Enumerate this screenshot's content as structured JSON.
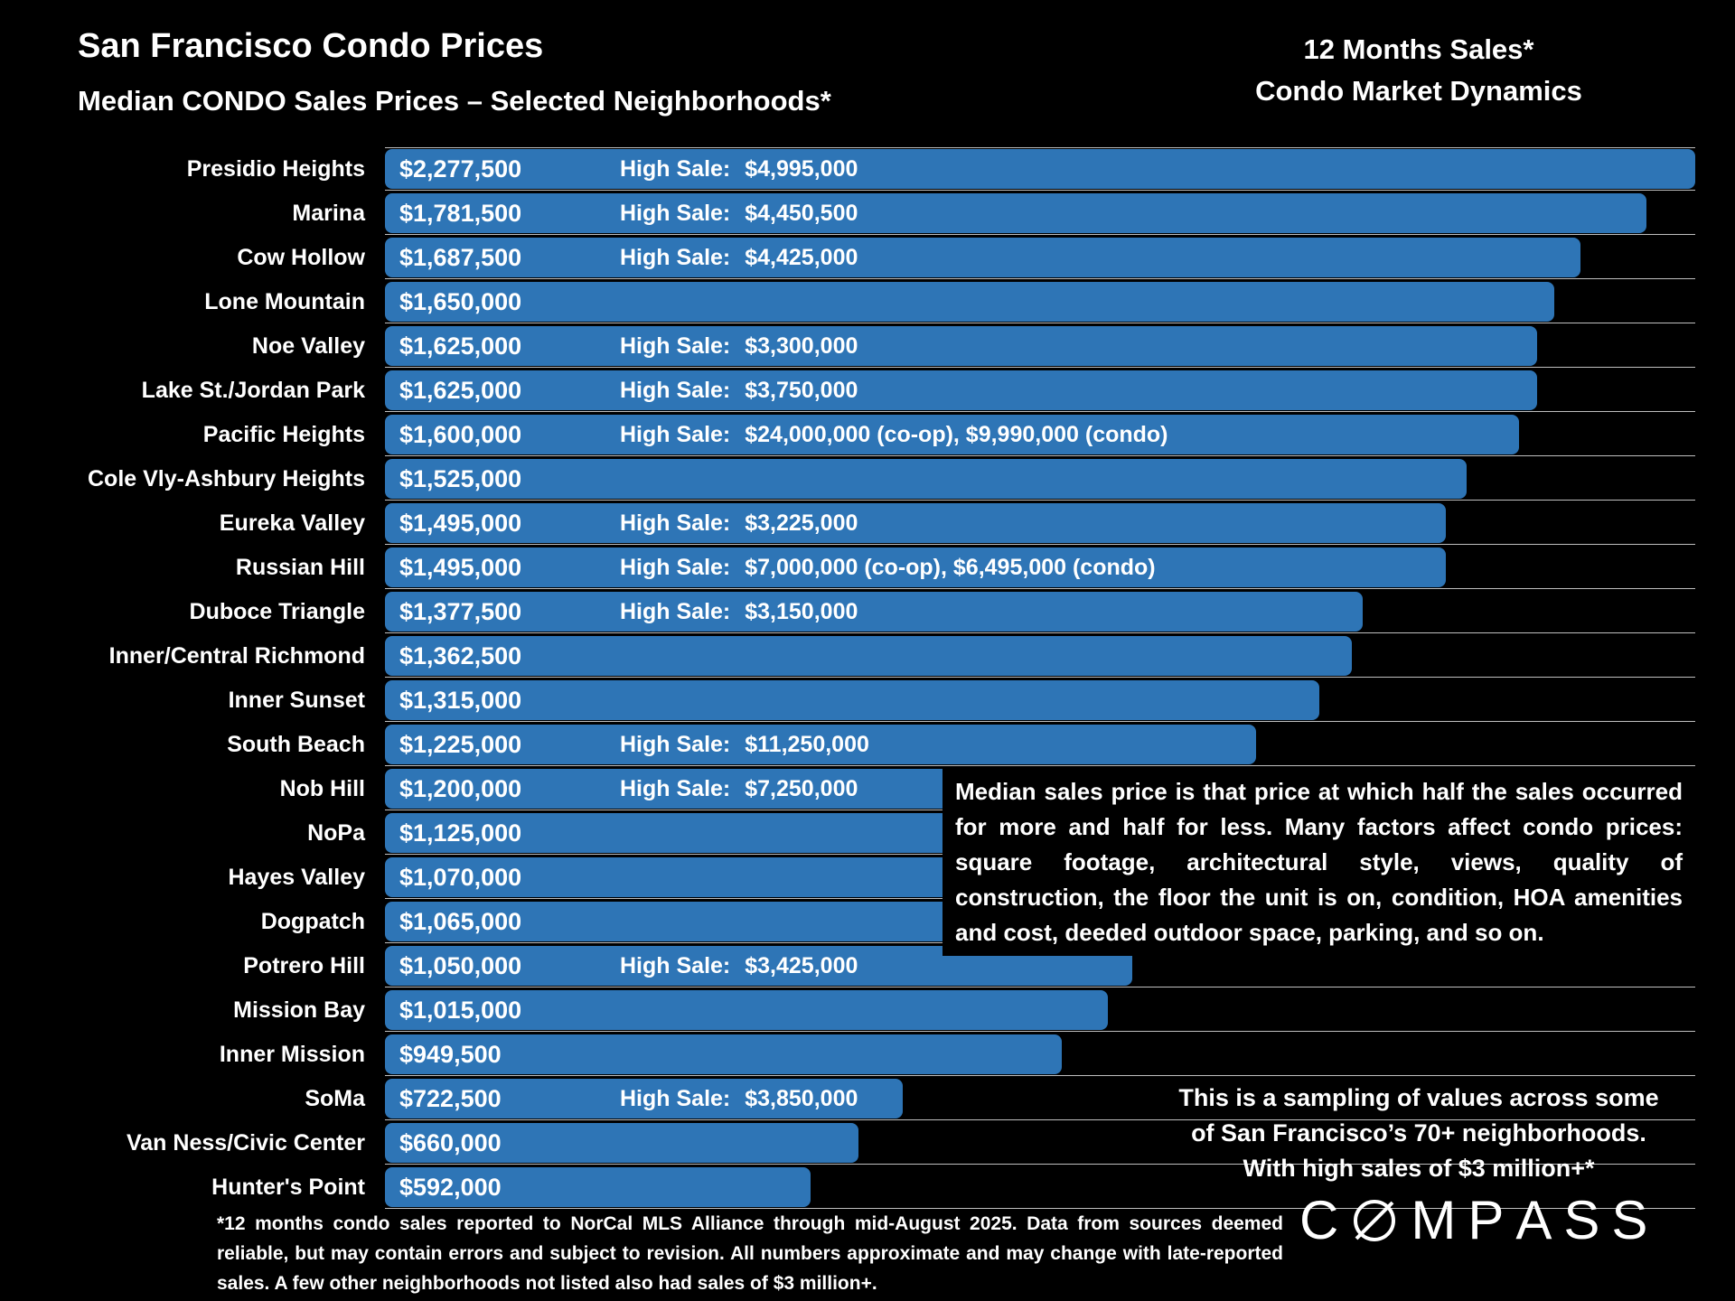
{
  "colors": {
    "background": "#000000",
    "bar": "#2E75B6",
    "text": "#FFFFFF"
  },
  "header": {
    "title": "San Francisco Condo Prices",
    "subtitle": "Median CONDO Sales Prices – Selected Neighborhoods*",
    "right_line1": "12 Months Sales*",
    "right_line2": "Condo Market Dynamics"
  },
  "chart_data": {
    "type": "bar",
    "orientation": "horizontal",
    "title": "San Francisco Condo Prices",
    "subtitle": "Median CONDO Sales Prices – Selected Neighborhoods*",
    "value_unit": "USD",
    "bar_color": "#2E75B6",
    "grid": true,
    "xlim": [
      0,
      2277500
    ],
    "categories": [
      "Presidio Heights",
      "Marina",
      "Cow Hollow",
      "Lone Mountain",
      "Noe Valley",
      "Lake St./Jordan Park",
      "Pacific Heights",
      "Cole Vly-Ashbury Heights",
      "Eureka Valley",
      "Russian Hill",
      "Duboce Triangle",
      "Inner/Central Richmond",
      "Inner Sunset",
      "South Beach",
      "Nob Hill",
      "NoPa",
      "Hayes Valley",
      "Dogpatch",
      "Potrero Hill",
      "Mission Bay",
      "Inner Mission",
      "SoMa",
      "Van Ness/Civic Center",
      "Hunter's Point"
    ],
    "values": [
      2277500,
      1781500,
      1687500,
      1650000,
      1625000,
      1625000,
      1600000,
      1525000,
      1495000,
      1495000,
      1377500,
      1362500,
      1315000,
      1225000,
      1200000,
      1125000,
      1070000,
      1065000,
      1050000,
      1015000,
      949500,
      722500,
      660000,
      592000
    ],
    "value_labels": [
      "$2,277,500",
      "$1,781,500",
      "$1,687,500",
      "$1,650,000",
      "$1,625,000",
      "$1,625,000",
      "$1,600,000",
      "$1,525,000",
      "$1,495,000",
      "$1,495,000",
      "$1,377,500",
      "$1,362,500",
      "$1,315,000",
      "$1,225,000",
      "$1,200,000",
      "$1,125,000",
      "$1,070,000",
      "$1,065,000",
      "$1,050,000",
      "$1,015,000",
      "$949,500",
      "$722,500",
      "$660,000",
      "$592,000"
    ],
    "high_sales": [
      {
        "label": "High Sale:",
        "value": "$4,995,000"
      },
      {
        "label": "High Sale:",
        "value": "$4,450,500"
      },
      {
        "label": "High Sale:",
        "value": "$4,425,000"
      },
      null,
      {
        "label": "High Sale:",
        "value": "$3,300,000"
      },
      {
        "label": "High Sale:",
        "value": "$3,750,000"
      },
      {
        "label": "High Sale:",
        "value": "$24,000,000 (co-op), $9,990,000 (condo)"
      },
      null,
      {
        "label": "High Sale:",
        "value": "$3,225,000"
      },
      {
        "label": "High Sale:",
        "value": "$7,000,000 (co-op), $6,495,000 (condo)"
      },
      {
        "label": "High Sale:",
        "value": "$3,150,000"
      },
      null,
      null,
      {
        "label": "High Sale:",
        "value": "$11,250,000"
      },
      {
        "label": "High Sale:",
        "value": "$7,250,000"
      },
      null,
      null,
      null,
      {
        "label": "High Sale:",
        "value": "$3,425,000"
      },
      null,
      null,
      {
        "label": "High Sale:",
        "value": "$3,850,000"
      },
      null,
      null
    ]
  },
  "note_box": {
    "text": "Median sales price is that price at which half the sales occurred for more and half for less. Many factors affect condo prices: square footage, architectural style, views, quality of construction, the floor the unit is on, condition, HOA amenities and cost, deeded outdoor space, parking, and so on."
  },
  "sampling_note": {
    "lines": [
      "This is a sampling of values across some",
      "of San Francisco’s 70+ neighborhoods.",
      "With high sales of $3 million+*"
    ]
  },
  "footnote": "*12 months condo sales reported to NorCal MLS Alliance through mid-August 2025. Data from sources deemed reliable, but may contain errors and subject to revision. All numbers approximate and may change with late-reported sales. A few other neighborhoods not listed also had sales of $3 million+.",
  "logo": {
    "brand": "COMPASS"
  }
}
